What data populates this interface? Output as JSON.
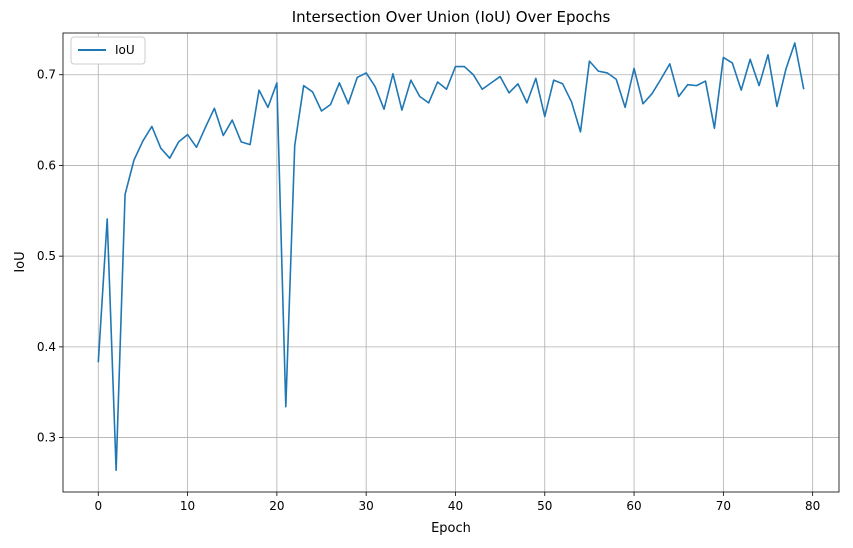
{
  "chart_data": {
    "type": "line",
    "title": "Intersection Over Union (IoU) Over Epochs",
    "xlabel": "Epoch",
    "ylabel": "IoU",
    "xlim": [
      -3.95,
      82.95
    ],
    "ylim": [
      0.24,
      0.746
    ],
    "xticks": [
      0,
      10,
      20,
      30,
      40,
      50,
      60,
      70,
      80
    ],
    "yticks": [
      0.3,
      0.4,
      0.5,
      0.6,
      0.7
    ],
    "xtick_labels": [
      "0",
      "10",
      "20",
      "30",
      "40",
      "50",
      "60",
      "70",
      "80"
    ],
    "ytick_labels": [
      "0.3",
      "0.4",
      "0.5",
      "0.6",
      "0.7"
    ],
    "grid": true,
    "legend": "top-left",
    "series": [
      {
        "name": "IoU",
        "color": "#1f77b4",
        "x": [
          0,
          1,
          2,
          3,
          4,
          5,
          6,
          7,
          8,
          9,
          10,
          11,
          12,
          13,
          14,
          15,
          16,
          17,
          18,
          19,
          20,
          21,
          22,
          23,
          24,
          25,
          26,
          27,
          28,
          29,
          30,
          31,
          32,
          33,
          34,
          35,
          36,
          37,
          38,
          39,
          40,
          41,
          42,
          43,
          44,
          45,
          46,
          47,
          48,
          49,
          50,
          51,
          52,
          53,
          54,
          55,
          56,
          57,
          58,
          59,
          60,
          61,
          62,
          63,
          64,
          65,
          66,
          67,
          68,
          69,
          70,
          71,
          72,
          73,
          74,
          75,
          76,
          77,
          78,
          79
        ],
        "y": [
          0.383,
          0.541,
          0.264,
          0.568,
          0.606,
          0.627,
          0.643,
          0.619,
          0.608,
          0.626,
          0.634,
          0.62,
          0.642,
          0.663,
          0.633,
          0.65,
          0.626,
          0.623,
          0.683,
          0.664,
          0.691,
          0.334,
          0.622,
          0.688,
          0.681,
          0.66,
          0.667,
          0.691,
          0.668,
          0.697,
          0.702,
          0.687,
          0.662,
          0.701,
          0.661,
          0.694,
          0.676,
          0.669,
          0.692,
          0.684,
          0.709,
          0.709,
          0.7,
          0.684,
          0.691,
          0.698,
          0.68,
          0.69,
          0.669,
          0.696,
          0.654,
          0.694,
          0.69,
          0.67,
          0.637,
          0.715,
          0.704,
          0.702,
          0.695,
          0.664,
          0.707,
          0.668,
          0.679,
          0.695,
          0.712,
          0.676,
          0.689,
          0.688,
          0.693,
          0.641,
          0.719,
          0.713,
          0.683,
          0.717,
          0.688,
          0.722,
          0.665,
          0.706,
          0.735,
          0.684
        ]
      }
    ]
  }
}
